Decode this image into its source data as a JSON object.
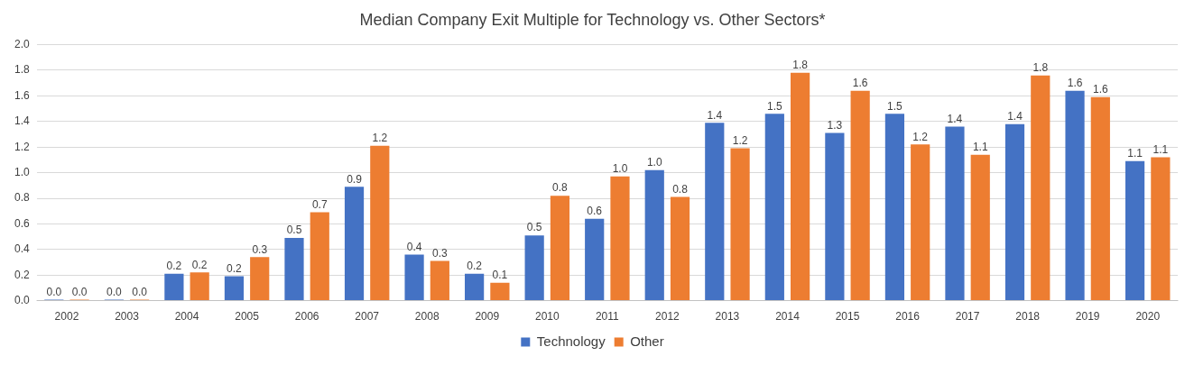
{
  "chart_data": {
    "type": "bar",
    "title": "Median Company Exit Multiple for Technology vs. Other Sectors*",
    "categories": [
      "2002",
      "2003",
      "2004",
      "2005",
      "2006",
      "2007",
      "2008",
      "2009",
      "2010",
      "2011",
      "2012",
      "2013",
      "2014",
      "2015",
      "2016",
      "2017",
      "2018",
      "2019",
      "2020"
    ],
    "series": [
      {
        "name": "Technology",
        "color": "#4472c4",
        "values": [
          0,
          0,
          0.21,
          0.19,
          0.49,
          0.89,
          0.36,
          0.21,
          0.51,
          0.64,
          1.02,
          1.39,
          1.46,
          1.31,
          1.46,
          1.36,
          1.38,
          1.64,
          1.09
        ],
        "value_labels": [
          "0.0",
          "0.0",
          "0.2",
          "0.2",
          "0.5",
          "0.9",
          "0.4",
          "0.2",
          "0.5",
          "0.6",
          "1.0",
          "1.4",
          "1.5",
          "1.3",
          "1.5",
          "1.4",
          "1.4",
          "1.6",
          "1.1"
        ]
      },
      {
        "name": "Other",
        "color": "#ed7d31",
        "values": [
          0,
          0,
          0.22,
          0.34,
          0.69,
          1.21,
          0.31,
          0.14,
          0.82,
          0.97,
          0.81,
          1.19,
          1.78,
          1.64,
          1.22,
          1.14,
          1.76,
          1.59,
          1.12
        ],
        "value_labels": [
          "0.0",
          "0.0",
          "0.2",
          "0.3",
          "0.7",
          "1.2",
          "0.3",
          "0.1",
          "0.8",
          "1.0",
          "0.8",
          "1.2",
          "1.8",
          "1.6",
          "1.2",
          "1.1",
          "1.8",
          "1.6",
          "1.1"
        ]
      }
    ],
    "ylim": [
      0,
      2
    ],
    "yticks": [
      {
        "value": 0,
        "label": "0.0"
      },
      {
        "value": 0.2,
        "label": "0.2"
      },
      {
        "value": 0.4,
        "label": "0.4"
      },
      {
        "value": 0.6,
        "label": "0.6"
      },
      {
        "value": 0.8,
        "label": "0.8"
      },
      {
        "value": 1,
        "label": "1.0"
      },
      {
        "value": 1.2,
        "label": "1.2"
      },
      {
        "value": 1.4,
        "label": "1.4"
      },
      {
        "value": 1.6,
        "label": "1.6"
      },
      {
        "value": 1.8,
        "label": "1.8"
      },
      {
        "value": 2,
        "label": "2.0"
      }
    ],
    "grid": "y",
    "legend": "bottom"
  }
}
